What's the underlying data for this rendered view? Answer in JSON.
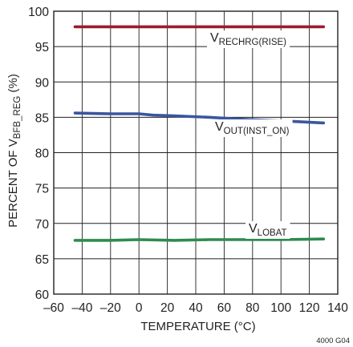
{
  "chart_data": {
    "type": "line",
    "xlabel": "TEMPERATURE (°C)",
    "ylabel": {
      "prefix": "PERCENT OF V",
      "subscript": "BFB_REG",
      "suffix": " (%)"
    },
    "xlim": [
      -60,
      140
    ],
    "ylim": [
      60,
      100
    ],
    "x_ticks": [
      "–60",
      "–40",
      "–20",
      "0",
      "20",
      "40",
      "60",
      "80",
      "100",
      "120",
      "140"
    ],
    "y_ticks": [
      "60",
      "65",
      "70",
      "75",
      "80",
      "85",
      "90",
      "95",
      "100"
    ],
    "grid": true,
    "series": [
      {
        "name": "V",
        "name_subscript": "RECHRG(RISE)",
        "color": "#9b1b30",
        "x": [
          -45,
          -20,
          0,
          25,
          50,
          75,
          100,
          130
        ],
        "y": [
          97.8,
          97.8,
          97.8,
          97.8,
          97.8,
          97.8,
          97.8,
          97.8
        ]
      },
      {
        "name": "V",
        "name_subscript": "OUT(INST_ON)",
        "color": "#3a56a0",
        "x": [
          -45,
          -20,
          0,
          10,
          25,
          50,
          75,
          100,
          130
        ],
        "y": [
          85.6,
          85.5,
          85.5,
          85.3,
          85.2,
          85.0,
          84.7,
          84.5,
          84.2
        ]
      },
      {
        "name": "V",
        "name_subscript": "LOBAT",
        "color": "#2e8b4f",
        "x": [
          -45,
          -20,
          0,
          25,
          50,
          75,
          100,
          130
        ],
        "y": [
          67.6,
          67.6,
          67.7,
          67.6,
          67.7,
          67.7,
          67.7,
          67.8
        ]
      }
    ],
    "figure_id": "4000 G04"
  }
}
